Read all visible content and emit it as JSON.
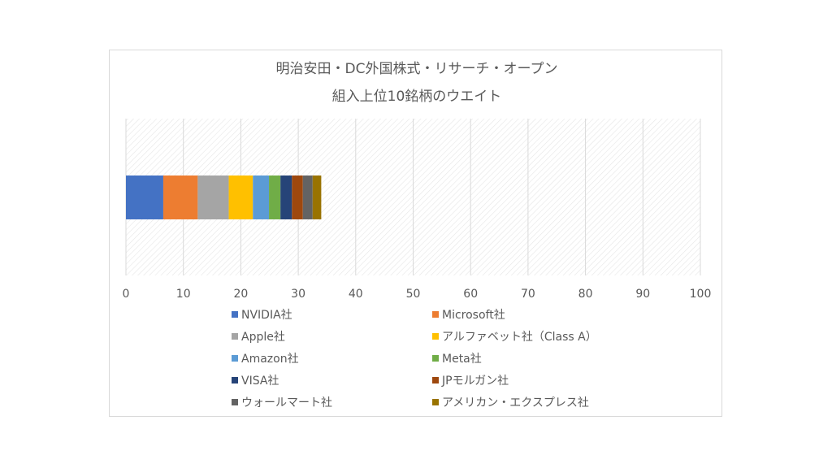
{
  "chart_data": {
    "type": "bar",
    "orientation": "horizontal",
    "stacked": true,
    "title_lines": [
      "明治安田・DC外国株式・リサーチ・オープン",
      "組入上位10銘柄のウエイト"
    ],
    "xlim": [
      0,
      100
    ],
    "x_ticks": [
      0,
      10,
      20,
      30,
      40,
      50,
      60,
      70,
      80,
      90,
      100
    ],
    "grid": true,
    "legend_position": "bottom",
    "series": [
      {
        "name": "NVIDIA社",
        "value": 6.5,
        "color": "#4472C4"
      },
      {
        "name": "Microsoft社",
        "value": 6.0,
        "color": "#ED7D31"
      },
      {
        "name": "Apple社",
        "value": 5.4,
        "color": "#A5A5A5"
      },
      {
        "name": "アルファベット社（Class A）",
        "value": 4.2,
        "color": "#FFC000"
      },
      {
        "name": "Amazon社",
        "value": 2.8,
        "color": "#5B9BD5"
      },
      {
        "name": "Meta社",
        "value": 2.0,
        "color": "#70AD47"
      },
      {
        "name": "VISA社",
        "value": 2.0,
        "color": "#264478"
      },
      {
        "name": "JPモルガン社",
        "value": 1.9,
        "color": "#9E480E"
      },
      {
        "name": "ウォールマート社",
        "value": 1.7,
        "color": "#636363"
      },
      {
        "name": "アメリカン・エクスプレス社",
        "value": 1.5,
        "color": "#997300"
      }
    ]
  }
}
